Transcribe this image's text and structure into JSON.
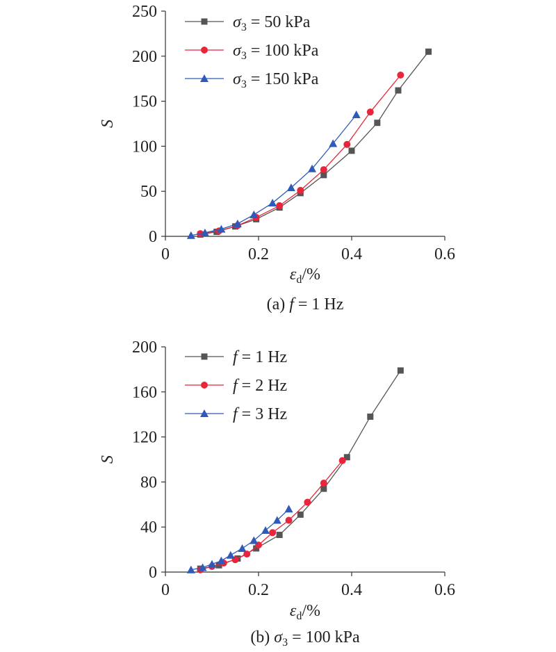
{
  "chart_data": [
    {
      "type": "line",
      "caption": "(a) f = 1 Hz",
      "caption_parts": {
        "prefix": "(a) ",
        "var": "f",
        "rest": " = 1 Hz"
      },
      "ylabel": "S",
      "xlabel": {
        "base": "ε",
        "sub": "d",
        "suffix": "/%"
      },
      "xlim": [
        0,
        0.6
      ],
      "ylim": [
        0,
        250
      ],
      "xticks": [
        "0",
        "0.2",
        "0.4",
        "0.6"
      ],
      "yticks": [
        "0",
        "50",
        "100",
        "150",
        "200",
        "250"
      ],
      "legend_position": "top-left",
      "series": [
        {
          "legend": {
            "var": "σ",
            "sub": "3",
            "rest": " = 50 kPa"
          },
          "color": "#555555",
          "marker": "square",
          "x": [
            0.075,
            0.11,
            0.15,
            0.195,
            0.245,
            0.29,
            0.34,
            0.4,
            0.455,
            0.5,
            0.565
          ],
          "y": [
            2,
            5,
            11,
            19,
            32,
            48,
            68,
            95,
            126,
            162,
            205
          ]
        },
        {
          "legend": {
            "var": "σ",
            "sub": "3",
            "rest": " = 100 kPa"
          },
          "color": "#e8253a",
          "marker": "circle",
          "x": [
            0.075,
            0.115,
            0.155,
            0.195,
            0.245,
            0.29,
            0.34,
            0.39,
            0.44,
            0.505
          ],
          "y": [
            3,
            6,
            12,
            21,
            34,
            51,
            74,
            102,
            138,
            179
          ]
        },
        {
          "legend": {
            "var": "σ",
            "sub": "3",
            "rest": " = 150 kPa"
          },
          "color": "#2f5ab9",
          "marker": "triangle",
          "x": [
            0.055,
            0.085,
            0.12,
            0.155,
            0.19,
            0.23,
            0.27,
            0.315,
            0.36,
            0.41
          ],
          "y": [
            1,
            4,
            8,
            14,
            24,
            37,
            54,
            75,
            103,
            135
          ]
        }
      ]
    },
    {
      "type": "line",
      "caption": "(b) σ3 = 100 kPa",
      "caption_parts": {
        "prefix": "(b) ",
        "var": "σ",
        "sub": "3",
        "rest": " = 100 kPa"
      },
      "ylabel": "S",
      "xlabel": {
        "base": "ε",
        "sub": "d",
        "suffix": "/%"
      },
      "xlim": [
        0,
        0.6
      ],
      "ylim": [
        0,
        200
      ],
      "xticks": [
        "0",
        "0.2",
        "0.4",
        "0.6"
      ],
      "yticks": [
        "0",
        "40",
        "80",
        "120",
        "160",
        "200"
      ],
      "legend_position": "top-left",
      "series": [
        {
          "legend": {
            "var": "f",
            "rest": " = 1 Hz"
          },
          "color": "#555555",
          "marker": "square",
          "x": [
            0.075,
            0.115,
            0.155,
            0.195,
            0.245,
            0.29,
            0.34,
            0.39,
            0.44,
            0.505
          ],
          "y": [
            3,
            6,
            12,
            21,
            33,
            51,
            74,
            102,
            138,
            179
          ]
        },
        {
          "legend": {
            "var": "f",
            "rest": " = 2 Hz"
          },
          "color": "#e8253a",
          "marker": "circle",
          "x": [
            0.075,
            0.1,
            0.125,
            0.15,
            0.175,
            0.2,
            0.23,
            0.265,
            0.305,
            0.34,
            0.38
          ],
          "y": [
            2,
            5,
            8,
            11,
            16,
            24,
            35,
            46,
            62,
            79,
            99
          ]
        },
        {
          "legend": {
            "var": "f",
            "rest": " = 3 Hz"
          },
          "color": "#2f5ab9",
          "marker": "triangle",
          "x": [
            0.055,
            0.08,
            0.1,
            0.12,
            0.14,
            0.165,
            0.19,
            0.215,
            0.24,
            0.265
          ],
          "y": [
            2,
            4,
            7,
            10,
            15,
            21,
            28,
            37,
            46,
            56
          ]
        }
      ]
    }
  ]
}
